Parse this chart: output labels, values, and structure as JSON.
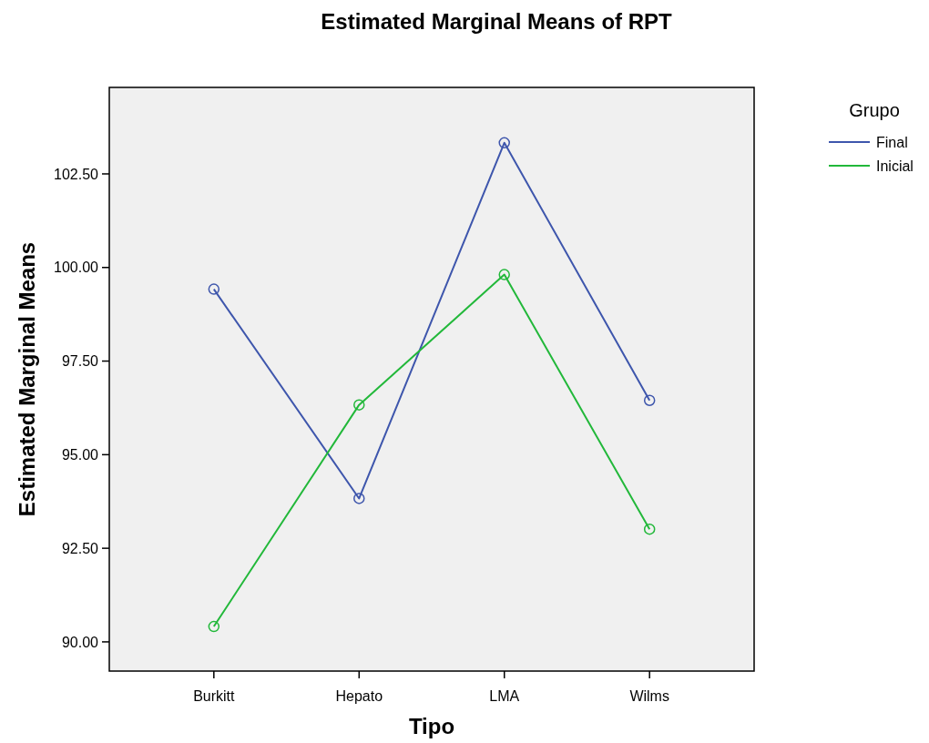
{
  "chart_data": {
    "type": "line",
    "title": "Estimated Marginal Means of RPT",
    "xlabel": "Tipo",
    "ylabel": "Estimated Marginal Means",
    "legend_title": "Grupo",
    "categories": [
      "Burkitt",
      "Hepato",
      "LMA",
      "Wilms"
    ],
    "series": [
      {
        "name": "Final",
        "color": "#3e56ac",
        "values": [
          99.42,
          93.83,
          103.33,
          96.45
        ]
      },
      {
        "name": "Inicial",
        "color": "#22b83a",
        "values": [
          90.41,
          96.33,
          99.81,
          93.01
        ]
      }
    ],
    "ylim": [
      89.22,
      104.81
    ],
    "yticks": [
      {
        "value": 90,
        "label": "90.00"
      },
      {
        "value": 92.5,
        "label": "92.50"
      },
      {
        "value": 95,
        "label": "95.00"
      },
      {
        "value": 97.5,
        "label": "97.50"
      },
      {
        "value": 100,
        "label": "100.00"
      },
      {
        "value": 102.5,
        "label": "102.50"
      }
    ],
    "grid": false,
    "legend": "top right",
    "marker": "circle",
    "line_style": "solid"
  }
}
